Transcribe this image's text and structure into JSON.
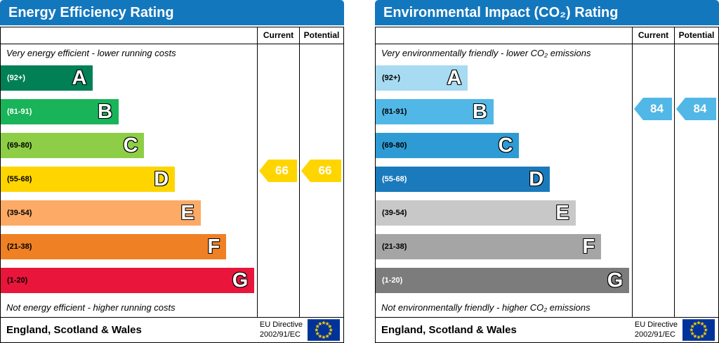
{
  "colors": {
    "header_blue": "#1377bd",
    "eu_flag_blue": "#003399",
    "eu_star_yellow": "#ffcc00"
  },
  "chart_data": [
    {
      "type": "bar",
      "title": "Energy Efficiency Rating",
      "columns": {
        "current_label": "Current",
        "potential_label": "Potential"
      },
      "top_caption": "Very energy efficient - lower running costs",
      "bottom_caption": "Not energy efficient - higher running costs",
      "bands": [
        {
          "letter": "A",
          "range": "(92+)",
          "color": "#008054",
          "range_color": "#ffffff",
          "width_pct": 36
        },
        {
          "letter": "B",
          "range": "(81-91)",
          "color": "#19b459",
          "range_color": "#ffffff",
          "width_pct": 46
        },
        {
          "letter": "C",
          "range": "(69-80)",
          "color": "#8dce46",
          "range_color": "#000000",
          "width_pct": 56
        },
        {
          "letter": "D",
          "range": "(55-68)",
          "color": "#ffd500",
          "range_color": "#000000",
          "width_pct": 68
        },
        {
          "letter": "E",
          "range": "(39-54)",
          "color": "#fcaa65",
          "range_color": "#000000",
          "width_pct": 78
        },
        {
          "letter": "F",
          "range": "(21-38)",
          "color": "#ef8023",
          "range_color": "#000000",
          "width_pct": 88
        },
        {
          "letter": "G",
          "range": "(1-20)",
          "color": "#e9153b",
          "range_color": "#000000",
          "width_pct": 99
        }
      ],
      "current": {
        "value": 66,
        "band": "D",
        "band_index": 3,
        "color": "#ffd500"
      },
      "potential": {
        "value": 66,
        "band": "D",
        "band_index": 3,
        "color": "#ffd500"
      },
      "footer": {
        "region": "England, Scotland & Wales",
        "directive_line1": "EU Directive",
        "directive_line2": "2002/91/EC"
      }
    },
    {
      "type": "bar",
      "title": "Environmental Impact (CO₂) Rating",
      "columns": {
        "current_label": "Current",
        "potential_label": "Potential"
      },
      "top_caption": "Very environmentally friendly - lower CO₂ emissions",
      "bottom_caption": "Not environmentally friendly - higher CO₂ emissions",
      "bands": [
        {
          "letter": "A",
          "range": "(92+)",
          "color": "#a6dbf2",
          "range_color": "#000000",
          "width_pct": 36
        },
        {
          "letter": "B",
          "range": "(81-91)",
          "color": "#51b7e6",
          "range_color": "#000000",
          "width_pct": 46
        },
        {
          "letter": "C",
          "range": "(69-80)",
          "color": "#2f9bd4",
          "range_color": "#000000",
          "width_pct": 56
        },
        {
          "letter": "D",
          "range": "(55-68)",
          "color": "#1a7abc",
          "range_color": "#ffffff",
          "width_pct": 68
        },
        {
          "letter": "E",
          "range": "(39-54)",
          "color": "#c8c8c8",
          "range_color": "#000000",
          "width_pct": 78
        },
        {
          "letter": "F",
          "range": "(21-38)",
          "color": "#a5a5a5",
          "range_color": "#000000",
          "width_pct": 88
        },
        {
          "letter": "G",
          "range": "(1-20)",
          "color": "#7c7c7c",
          "range_color": "#ffffff",
          "width_pct": 99
        }
      ],
      "current": {
        "value": 84,
        "band": "B",
        "band_index": 1,
        "color": "#51b7e6"
      },
      "potential": {
        "value": 84,
        "band": "B",
        "band_index": 1,
        "color": "#51b7e6"
      },
      "footer": {
        "region": "England, Scotland & Wales",
        "directive_line1": "EU Directive",
        "directive_line2": "2002/91/EC"
      }
    }
  ]
}
